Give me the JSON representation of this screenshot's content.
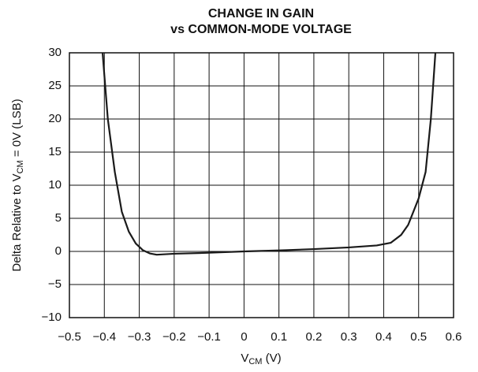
{
  "chart_data": {
    "type": "line",
    "title": [
      "CHANGE IN GAIN",
      "vs COMMON-MODE VOLTAGE"
    ],
    "xlabel": [
      "V",
      "CM",
      " (V)"
    ],
    "ylabel": [
      "Delta Relative to V",
      "CM",
      " = 0V (LSB)"
    ],
    "x": [
      -0.405,
      -0.39,
      -0.37,
      -0.35,
      -0.33,
      -0.31,
      -0.29,
      -0.27,
      -0.25,
      -0.2,
      -0.1,
      0,
      0.1,
      0.2,
      0.3,
      0.38,
      0.42,
      0.45,
      0.47,
      0.5,
      0.52,
      0.535,
      0.548
    ],
    "values": [
      30,
      20,
      12,
      6,
      3,
      1.2,
      0.2,
      -0.3,
      -0.5,
      -0.35,
      -0.2,
      0,
      0.15,
      0.35,
      0.6,
      0.9,
      1.3,
      2.5,
      4,
      8,
      12,
      20,
      30
    ],
    "color": "#1a1a1a",
    "xlim": [
      -0.5,
      0.6
    ],
    "xticks": [
      {
        "value": -0.5,
        "label": "−0.5"
      },
      {
        "value": -0.4,
        "label": "−0.4"
      },
      {
        "value": -0.3,
        "label": "−0.3"
      },
      {
        "value": -0.2,
        "label": "−0.2"
      },
      {
        "value": -0.1,
        "label": "−0.1"
      },
      0,
      0.1,
      0.2,
      0.3,
      0.4,
      0.5,
      0.6
    ],
    "ylim": [
      -10,
      30
    ],
    "yticks": [
      {
        "value": -10,
        "label": "−10"
      },
      {
        "value": -5,
        "label": "−5"
      },
      0,
      5,
      10,
      15,
      20,
      25,
      30
    ],
    "grid": true
  }
}
